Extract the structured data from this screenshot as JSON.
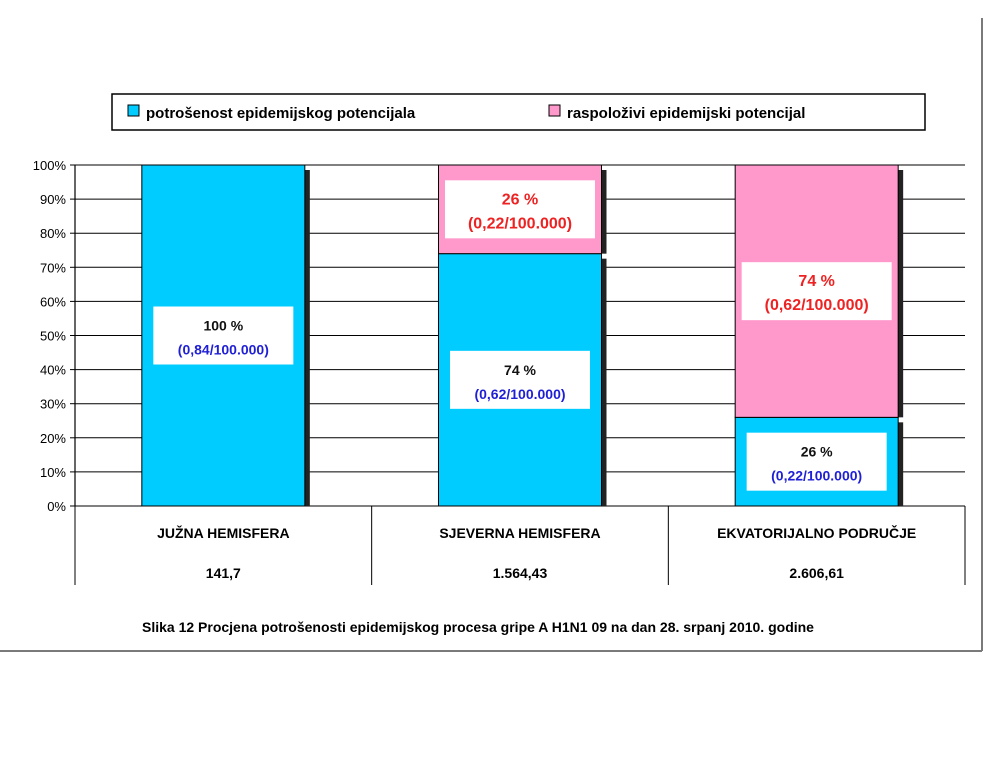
{
  "colors": {
    "used": "#00ccff",
    "available": "#ff99cc",
    "label_dark": "#111111",
    "label_blue": "#1f1fd6",
    "label_red": "#ee2222",
    "grid": "#000000"
  },
  "legend": [
    {
      "label": "potrošenost epidemijskog potencijala",
      "color": "#00ccff"
    },
    {
      "label": "raspoloživi epidemijski potencijal",
      "color": "#ff99cc"
    }
  ],
  "chart_data": {
    "type": "bar",
    "stacked": true,
    "percent": true,
    "categories": [
      "JUŽNA HEMISFERA",
      "SJEVERNA HEMISFERA",
      "EKVATORIJALNO PODRUČJE"
    ],
    "category_values": [
      "141,7",
      "1.564,43",
      "2.606,61"
    ],
    "series": [
      {
        "name": "potrošenost epidemijskog potencijala",
        "values": [
          100,
          74,
          26
        ],
        "labels": [
          {
            "pct": "100 %",
            "rate": "(0,84/100.000)"
          },
          {
            "pct": "74 %",
            "rate": "(0,62/100.000)"
          },
          {
            "pct": "26 %",
            "rate": "(0,22/100.000)"
          }
        ]
      },
      {
        "name": "raspoloživi epidemijski potencijal",
        "values": [
          0,
          26,
          74
        ],
        "labels": [
          null,
          {
            "pct": "26 %",
            "rate": "(0,22/100.000)"
          },
          {
            "pct": "74 %",
            "rate": "(0,62/100.000)"
          }
        ]
      }
    ],
    "y_ticks": [
      "0%",
      "10%",
      "20%",
      "30%",
      "40%",
      "50%",
      "60%",
      "70%",
      "80%",
      "90%",
      "100%"
    ],
    "ylim": [
      0,
      100
    ],
    "grid": true,
    "legend_position": "top"
  },
  "caption": "Slika 12 Procjena potrošenosti epidemijskog procesa gripe A H1N1 09 na dan 28. srpanj 2010. godine"
}
